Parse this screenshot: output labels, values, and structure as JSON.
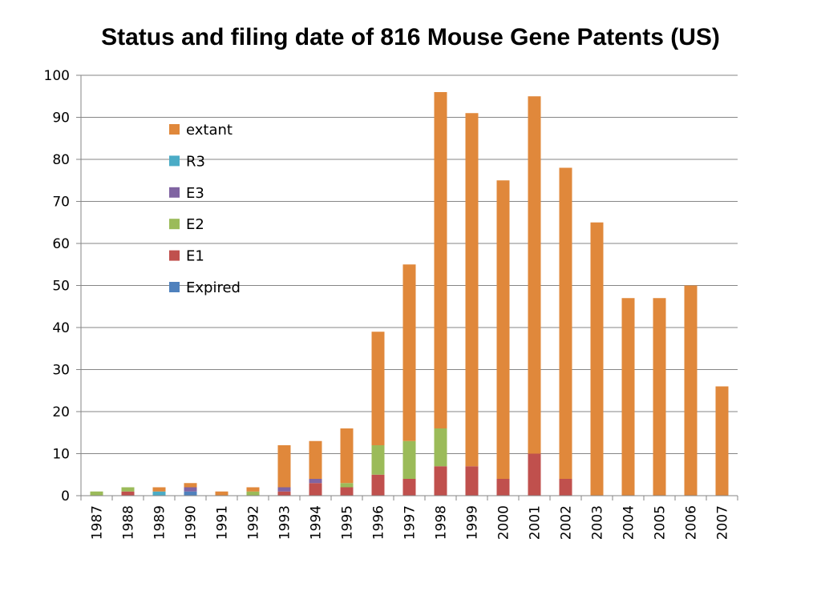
{
  "chart_data": {
    "type": "bar",
    "stacked": true,
    "title": "Status and filing date of 816 Mouse Gene Patents (US)",
    "xlabel": "",
    "ylabel": "",
    "ylim": [
      0,
      100
    ],
    "yticks": [
      0,
      10,
      20,
      30,
      40,
      50,
      60,
      70,
      80,
      90,
      100
    ],
    "grid": true,
    "legend_position": "upper-left inside plot",
    "categories": [
      "1987",
      "1988",
      "1989",
      "1990",
      "1991",
      "1992",
      "1993",
      "1994",
      "1995",
      "1996",
      "1997",
      "1998",
      "1999",
      "2000",
      "2001",
      "2002",
      "2003",
      "2004",
      "2005",
      "2006",
      "2007"
    ],
    "series": [
      {
        "name": "Expired",
        "color": "#4F81BD",
        "values": [
          0,
          0,
          0,
          1,
          0,
          0,
          0,
          0,
          0,
          0,
          0,
          0,
          0,
          0,
          0,
          0,
          0,
          0,
          0,
          0,
          0
        ]
      },
      {
        "name": "E1",
        "color": "#C0504D",
        "values": [
          0,
          1,
          0,
          0,
          0,
          0,
          1,
          3,
          2,
          5,
          4,
          7,
          7,
          4,
          10,
          4,
          0,
          0,
          0,
          0,
          0
        ]
      },
      {
        "name": "E2",
        "color": "#9BBB59",
        "values": [
          1,
          1,
          0,
          0,
          0,
          1,
          0,
          0,
          1,
          7,
          9,
          9,
          0,
          0,
          0,
          0,
          0,
          0,
          0,
          0,
          0
        ]
      },
      {
        "name": "E3",
        "color": "#8064A2",
        "values": [
          0,
          0,
          0,
          1,
          0,
          0,
          1,
          1,
          0,
          0,
          0,
          0,
          0,
          0,
          0,
          0,
          0,
          0,
          0,
          0,
          0
        ]
      },
      {
        "name": "R3",
        "color": "#4BACC6",
        "values": [
          0,
          0,
          1,
          0,
          0,
          0,
          0,
          0,
          0,
          0,
          0,
          0,
          0,
          0,
          0,
          0,
          0,
          0,
          0,
          0,
          0
        ]
      },
      {
        "name": "extant",
        "color": "#E0883B",
        "values": [
          0,
          0,
          1,
          1,
          1,
          1,
          10,
          9,
          13,
          27,
          42,
          80,
          84,
          71,
          85,
          74,
          65,
          47,
          47,
          50,
          26
        ]
      }
    ],
    "legend_order": [
      "extant",
      "R3",
      "E3",
      "E2",
      "E1",
      "Expired"
    ]
  }
}
